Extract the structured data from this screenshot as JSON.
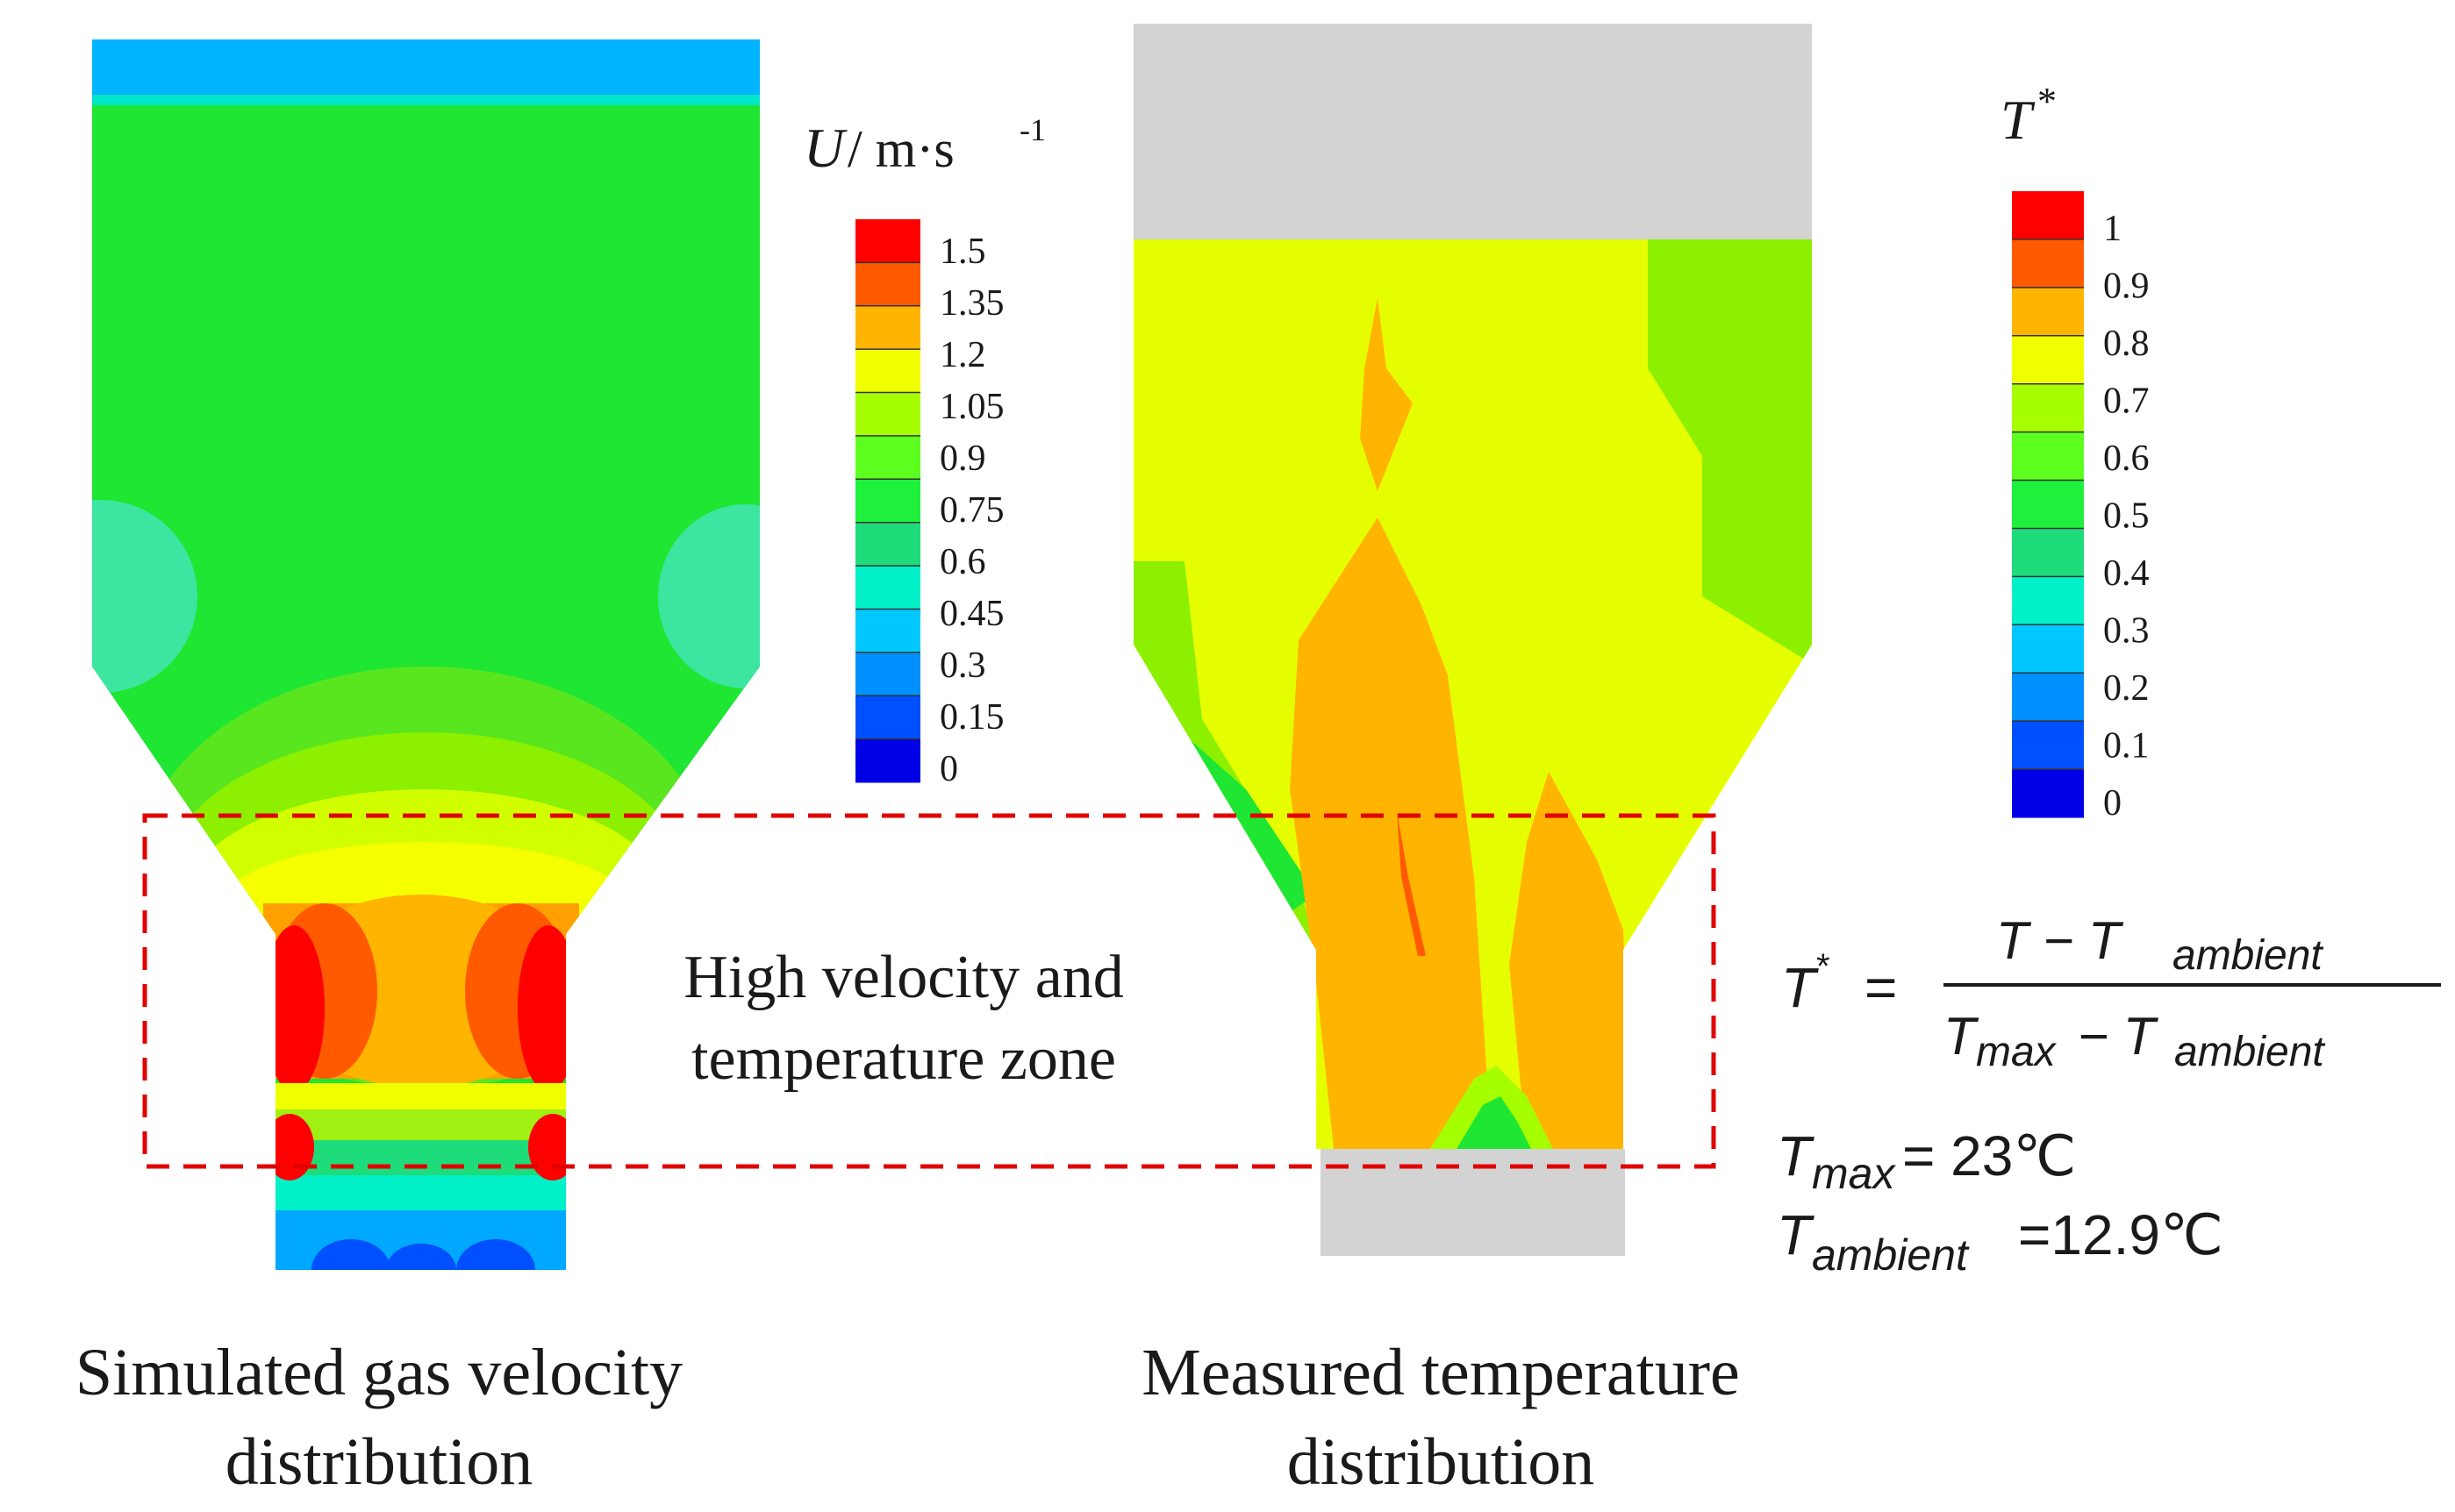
{
  "left_panel": {
    "caption_line1": "Simulated gas velocity",
    "caption_line2": "distribution"
  },
  "right_panel": {
    "caption_line1": "Measured temperature",
    "caption_line2": "distribution"
  },
  "velocity_legend": {
    "title_var": "U",
    "title_unit": "/ m·s",
    "title_exp": "-1",
    "ticks": [
      "1.5",
      "1.35",
      "1.2",
      "1.05",
      "0.9",
      "0.75",
      "0.6",
      "0.45",
      "0.3",
      "0.15",
      "0"
    ],
    "colors": [
      "#ff0000",
      "#ff5a00",
      "#ffb400",
      "#f0ff00",
      "#a6ff00",
      "#5cff1e",
      "#1ef03c",
      "#1edc7a",
      "#00f0c8",
      "#00c8ff",
      "#0090ff",
      "#0050ff",
      "#0000e6"
    ]
  },
  "temperature_legend": {
    "title_var": "T",
    "title_sup": "*",
    "ticks": [
      "1",
      "0.9",
      "0.8",
      "0.7",
      "0.6",
      "0.5",
      "0.4",
      "0.3",
      "0.2",
      "0.1",
      "0"
    ],
    "colors": [
      "#ff0000",
      "#ff5a00",
      "#ffb400",
      "#f0ff00",
      "#a6ff00",
      "#5cff1e",
      "#1ef03c",
      "#1edc7a",
      "#00f0c8",
      "#00c8ff",
      "#0090ff",
      "#0050ff",
      "#0000e6"
    ]
  },
  "highlight": {
    "line1": "High velocity and",
    "line2": "temperature zone",
    "color": "#e00000"
  },
  "formula": {
    "lhs": "T",
    "lhs_sup": "*",
    "equals": "=",
    "numerator": "T − T",
    "numerator_sub": "ambient",
    "denominator": "T",
    "denominator_sub1": "max",
    "denominator_mid": " − T",
    "denominator_sub2": "ambient",
    "tmax_var": "T",
    "tmax_sub": "max",
    "tmax_value": " = 23℃",
    "tamb_var": "T",
    "tamb_sub": "ambient",
    "tamb_value": " =12.9℃"
  },
  "colors": {
    "gray_block": "#d3d3d3",
    "green_field": "#1ee632",
    "yellow_field": "#e6ff00",
    "orange_field": "#ffb400"
  }
}
